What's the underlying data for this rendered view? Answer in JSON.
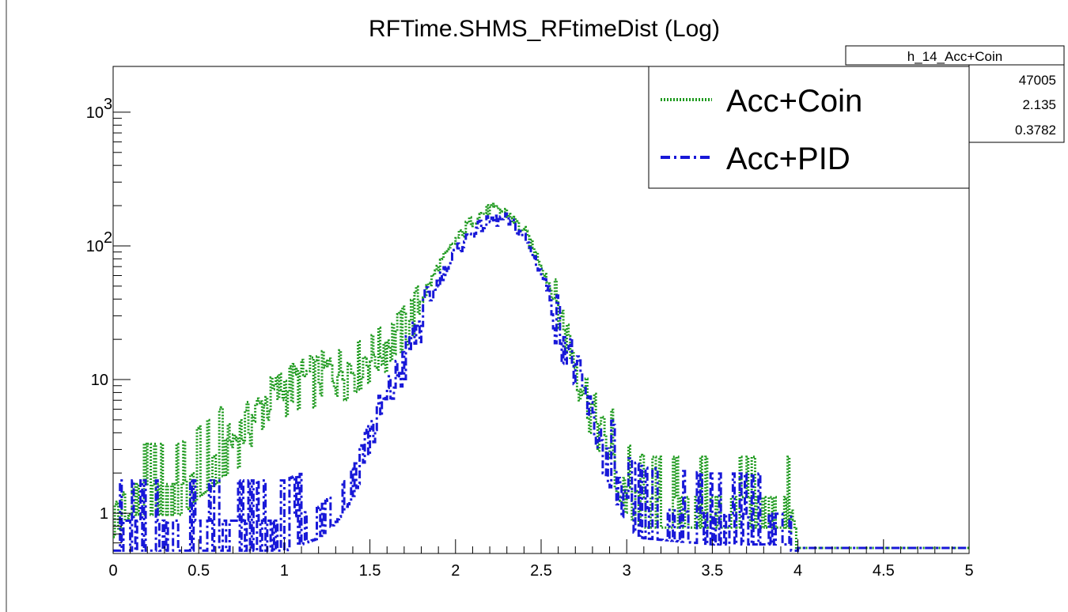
{
  "chart_data": {
    "type": "histogram",
    "title": "RFTime.SHMS_RFtimeDist (Log)",
    "xlabel": "",
    "ylabel": "",
    "xlim": [
      0,
      5
    ],
    "ylim": [
      0.5,
      2200
    ],
    "ylog": true,
    "grid": false,
    "legend_position": "top-right",
    "x_ticks": [
      "0",
      "0.5",
      "1",
      "1.5",
      "2",
      "2.5",
      "3",
      "3.5",
      "4",
      "4.5",
      "5"
    ],
    "y_ticks": [
      {
        "value": 1,
        "label": "1"
      },
      {
        "value": 10,
        "label": "10"
      },
      {
        "value": 100,
        "base": "10",
        "exp": "2"
      },
      {
        "value": 1000,
        "base": "10",
        "exp": "3"
      }
    ],
    "stats_box": {
      "name": "h_14_Acc+Coin",
      "values": [
        "47005",
        "2.135",
        "0.3782"
      ]
    },
    "series": [
      {
        "name": "Acc+Coin",
        "color": "#1e9a1e",
        "line_style": "dotted",
        "profile": {
          "x": [
            0.0,
            0.1,
            0.2,
            0.3,
            0.4,
            0.5,
            0.6,
            0.7,
            0.8,
            0.9,
            1.0,
            1.1,
            1.2,
            1.3,
            1.4,
            1.5,
            1.6,
            1.7,
            1.8,
            1.9,
            2.0,
            2.1,
            2.2,
            2.3,
            2.4,
            2.5,
            2.6,
            2.7,
            2.8,
            2.9,
            3.0,
            3.1,
            3.5,
            3.95,
            4.0,
            5.0
          ],
          "y": [
            1,
            1.5,
            1.5,
            1.5,
            1.5,
            2,
            2.5,
            3.5,
            5,
            7,
            9,
            10,
            11,
            12,
            13,
            15,
            19,
            25,
            40,
            70,
            110,
            160,
            190,
            180,
            130,
            75,
            35,
            14,
            6,
            3,
            1.5,
            1.2,
            1.2,
            1.2,
            0.55,
            0.55
          ]
        }
      },
      {
        "name": "Acc+PID",
        "color": "#1818d8",
        "line_style": "dash-dot",
        "profile": {
          "x": [
            0.0,
            0.2,
            0.4,
            0.6,
            0.8,
            1.0,
            1.1,
            1.2,
            1.3,
            1.4,
            1.5,
            1.6,
            1.7,
            1.8,
            1.9,
            2.0,
            2.1,
            2.2,
            2.3,
            2.4,
            2.5,
            2.6,
            2.7,
            2.8,
            2.9,
            3.0,
            3.1,
            3.5,
            3.95,
            4.0,
            5.0
          ],
          "y": [
            0.8,
            0.8,
            0.8,
            0.8,
            0.8,
            0.8,
            0.9,
            1.0,
            1.3,
            2,
            4,
            7,
            14,
            28,
            55,
            90,
            130,
            155,
            160,
            120,
            65,
            30,
            12,
            5,
            2.5,
            1.2,
            1.0,
            0.9,
            0.9,
            0.55,
            0.55
          ]
        }
      }
    ]
  }
}
